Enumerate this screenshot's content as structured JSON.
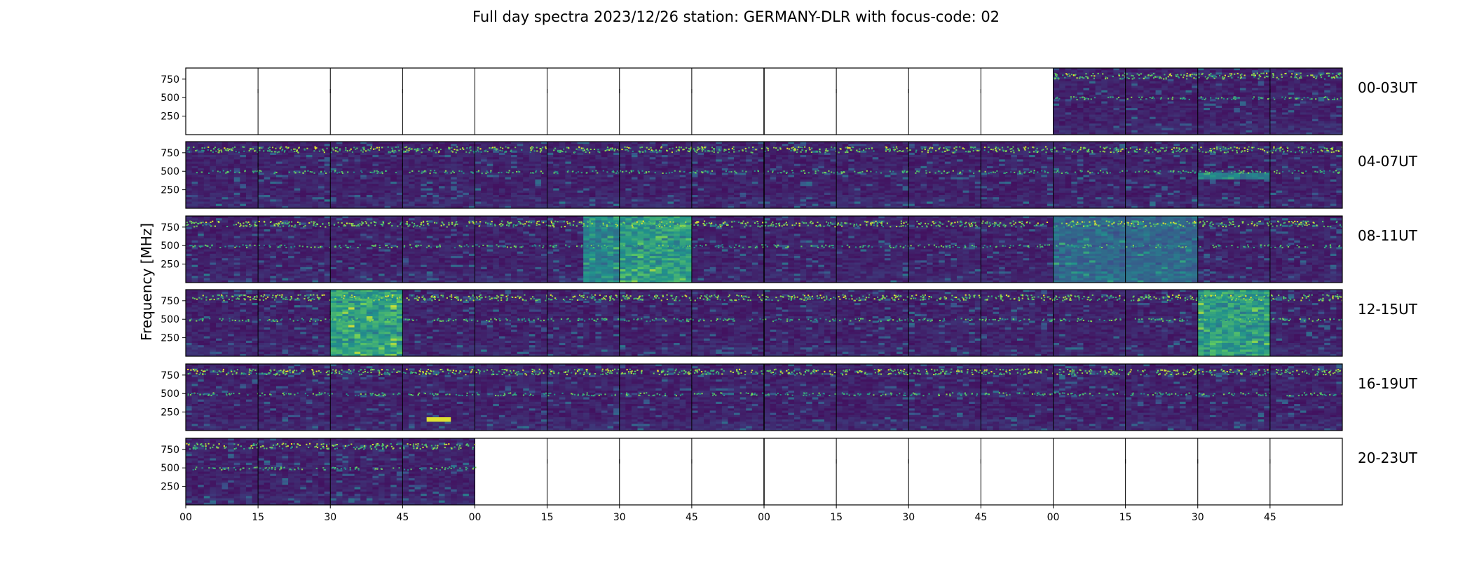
{
  "chart_data": {
    "type": "heatmap",
    "title": "Full day spectra 2023/12/26 station: GERMANY-DLR with focus-code: 02",
    "ylabel": "Frequency [MHz]",
    "xlabel": "",
    "y_ticks": [
      "750",
      "500",
      "250"
    ],
    "y_tick_values": [
      750,
      500,
      250
    ],
    "ylim": [
      0,
      900
    ],
    "x_ticks": [
      "00",
      "15",
      "30",
      "45",
      "00",
      "15",
      "30",
      "45",
      "00",
      "15",
      "30",
      "45",
      "00",
      "15",
      "30",
      "45"
    ],
    "colormap": "viridis",
    "colormap_stops": [
      "#440154",
      "#3b528b",
      "#21918c",
      "#5ec962",
      "#fde725"
    ],
    "panel_minutes": 15,
    "rows": [
      {
        "label": "00-03UT",
        "data_panels": [
          12,
          13,
          14,
          15
        ]
      },
      {
        "label": "04-07UT",
        "data_panels": [
          0,
          1,
          2,
          3,
          4,
          5,
          6,
          7,
          8,
          9,
          10,
          11,
          12,
          13,
          14,
          15
        ]
      },
      {
        "label": "08-11UT",
        "data_panels": [
          0,
          1,
          2,
          3,
          4,
          5,
          6,
          7,
          8,
          9,
          10,
          11,
          12,
          13,
          14,
          15
        ]
      },
      {
        "label": "12-15UT",
        "data_panels": [
          0,
          1,
          2,
          3,
          4,
          5,
          6,
          7,
          8,
          9,
          10,
          11,
          12,
          13,
          14,
          15
        ]
      },
      {
        "label": "16-19UT",
        "data_panels": [
          0,
          1,
          2,
          3,
          4,
          5,
          6,
          7,
          8,
          9,
          10,
          11,
          12,
          13,
          14,
          15
        ]
      },
      {
        "label": "20-23UT",
        "data_panels": [
          0,
          1,
          2,
          3
        ]
      }
    ],
    "emission_bands_mhz": [
      820,
      780,
      500
    ],
    "bursts": [
      {
        "row": 2,
        "panel": 5,
        "minutes": [
          8,
          15
        ],
        "intensity": 0.45
      },
      {
        "row": 2,
        "panel": 6,
        "minutes": [
          0,
          15
        ],
        "intensity": 0.55
      },
      {
        "row": 2,
        "panel": 12,
        "minutes": [
          0,
          15
        ],
        "intensity": 0.3
      },
      {
        "row": 2,
        "panel": 13,
        "minutes": [
          0,
          15
        ],
        "intensity": 0.3
      },
      {
        "row": 3,
        "panel": 2,
        "minutes": [
          0,
          15
        ],
        "intensity": 0.6
      },
      {
        "row": 3,
        "panel": 14,
        "minutes": [
          0,
          15
        ],
        "intensity": 0.55
      },
      {
        "row": 4,
        "panel": 3,
        "minutes": [
          5,
          10
        ],
        "intensity": 1.0,
        "freq_mhz": [
          120,
          180
        ]
      },
      {
        "row": 1,
        "panel": 14,
        "minutes": [
          0,
          15
        ],
        "intensity": 0.45,
        "freq_mhz": [
          380,
          480
        ]
      }
    ]
  }
}
